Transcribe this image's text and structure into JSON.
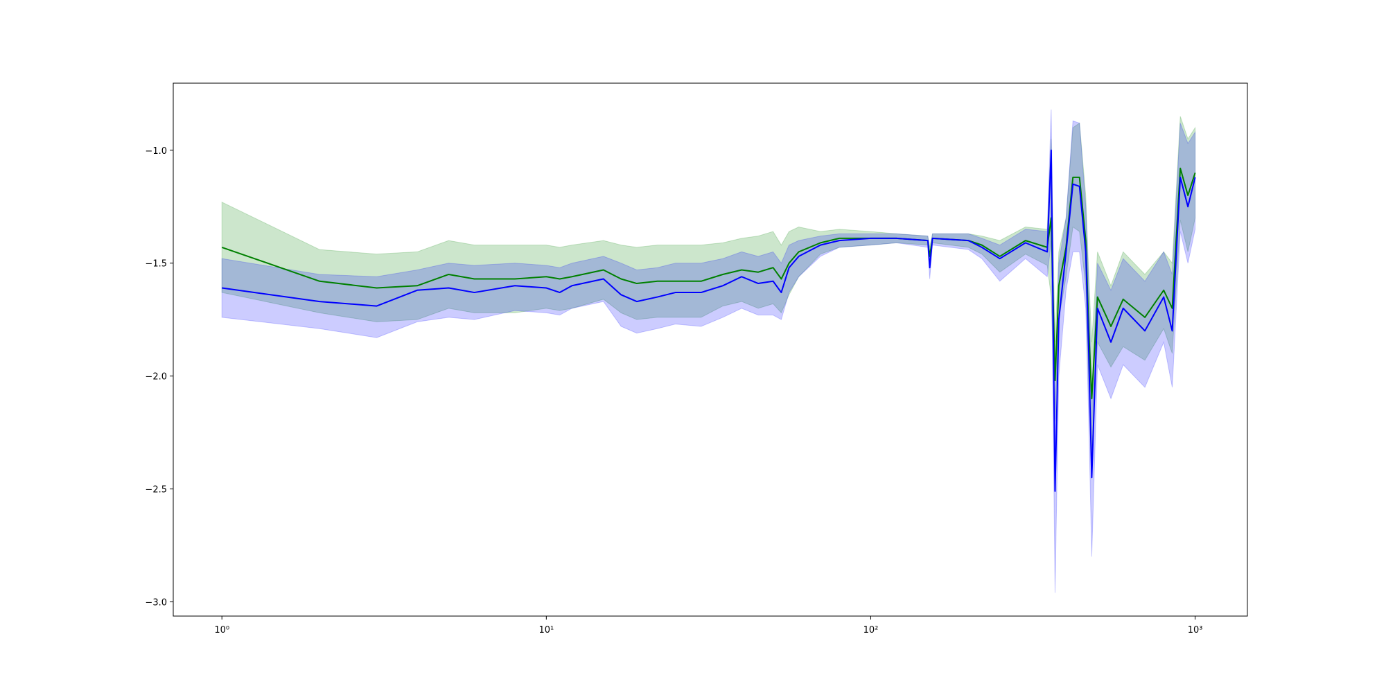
{
  "chart_data": {
    "type": "line",
    "xscale": "log",
    "xlim": [
      0.708,
      1449
    ],
    "ylim": [
      -3.063,
      -0.703
    ],
    "xticks": [
      {
        "value": 1,
        "label": "10⁰"
      },
      {
        "value": 10,
        "label": "10¹"
      },
      {
        "value": 100,
        "label": "10²"
      },
      {
        "value": 1000,
        "label": "10³"
      }
    ],
    "yticks": [
      {
        "value": -1.0,
        "label": "−1.0"
      },
      {
        "value": -1.5,
        "label": "−1.5"
      },
      {
        "value": -2.0,
        "label": "−2.0"
      },
      {
        "value": -2.5,
        "label": "−2.5"
      },
      {
        "value": -3.0,
        "label": "−3.0"
      }
    ],
    "grid": false,
    "x": [
      1,
      2,
      3,
      4,
      5,
      6,
      8,
      10,
      11,
      12,
      15,
      17,
      19,
      22,
      25,
      30,
      35,
      40,
      45,
      50,
      53,
      56,
      60,
      70,
      80,
      100,
      120,
      150,
      152,
      155,
      200,
      220,
      250,
      300,
      350,
      360,
      370,
      380,
      400,
      420,
      440,
      460,
      470,
      480,
      500,
      550,
      600,
      700,
      800,
      850,
      900,
      950,
      1000
    ],
    "series": [
      {
        "color": "#008000",
        "values": [
          -1.43,
          -1.58,
          -1.61,
          -1.6,
          -1.55,
          -1.57,
          -1.57,
          -1.56,
          -1.57,
          -1.56,
          -1.53,
          -1.57,
          -1.59,
          -1.58,
          -1.58,
          -1.58,
          -1.55,
          -1.53,
          -1.54,
          -1.52,
          -1.57,
          -1.5,
          -1.45,
          -1.41,
          -1.39,
          -1.39,
          -1.39,
          -1.4,
          -1.47,
          -1.39,
          -1.4,
          -1.42,
          -1.47,
          -1.4,
          -1.43,
          -1.3,
          -2.02,
          -1.6,
          -1.43,
          -1.12,
          -1.12,
          -1.4,
          -1.8,
          -2.1,
          -1.65,
          -1.78,
          -1.66,
          -1.74,
          -1.62,
          -1.7,
          -1.08,
          -1.2,
          -1.1
        ],
        "upper": [
          -1.23,
          -1.44,
          -1.46,
          -1.45,
          -1.4,
          -1.42,
          -1.42,
          -1.42,
          -1.43,
          -1.42,
          -1.4,
          -1.42,
          -1.43,
          -1.42,
          -1.42,
          -1.42,
          -1.41,
          -1.39,
          -1.38,
          -1.36,
          -1.42,
          -1.36,
          -1.34,
          -1.36,
          -1.35,
          -1.36,
          -1.37,
          -1.38,
          -1.43,
          -1.37,
          -1.37,
          -1.38,
          -1.4,
          -1.34,
          -1.35,
          -0.95,
          -1.85,
          -1.45,
          -1.3,
          -0.9,
          -0.88,
          -1.2,
          -1.55,
          -1.85,
          -1.45,
          -1.6,
          -1.45,
          -1.55,
          -1.45,
          -1.5,
          -0.85,
          -0.95,
          -0.9
        ],
        "lower": [
          -1.63,
          -1.72,
          -1.76,
          -1.75,
          -1.7,
          -1.72,
          -1.72,
          -1.7,
          -1.71,
          -1.7,
          -1.66,
          -1.72,
          -1.75,
          -1.74,
          -1.74,
          -1.74,
          -1.69,
          -1.67,
          -1.7,
          -1.68,
          -1.72,
          -1.64,
          -1.56,
          -1.46,
          -1.43,
          -1.42,
          -1.41,
          -1.42,
          -1.51,
          -1.41,
          -1.43,
          -1.46,
          -1.54,
          -1.46,
          -1.51,
          -1.65,
          -2.19,
          -1.75,
          -1.56,
          -1.34,
          -1.36,
          -1.6,
          -2.05,
          -2.35,
          -1.85,
          -1.96,
          -1.87,
          -1.93,
          -1.79,
          -1.9,
          -1.31,
          -1.45,
          -1.3
        ]
      },
      {
        "color": "#0000ff",
        "values": [
          -1.61,
          -1.67,
          -1.69,
          -1.62,
          -1.61,
          -1.63,
          -1.6,
          -1.61,
          -1.63,
          -1.6,
          -1.57,
          -1.64,
          -1.67,
          -1.65,
          -1.63,
          -1.63,
          -1.6,
          -1.56,
          -1.59,
          -1.58,
          -1.63,
          -1.52,
          -1.47,
          -1.42,
          -1.4,
          -1.39,
          -1.39,
          -1.4,
          -1.52,
          -1.39,
          -1.4,
          -1.43,
          -1.48,
          -1.41,
          -1.45,
          -1.0,
          -2.51,
          -1.75,
          -1.45,
          -1.15,
          -1.16,
          -1.45,
          -1.9,
          -2.45,
          -1.7,
          -1.85,
          -1.7,
          -1.8,
          -1.65,
          -1.8,
          -1.12,
          -1.25,
          -1.12
        ],
        "upper": [
          -1.48,
          -1.55,
          -1.56,
          -1.53,
          -1.5,
          -1.51,
          -1.5,
          -1.51,
          -1.52,
          -1.5,
          -1.47,
          -1.5,
          -1.53,
          -1.52,
          -1.5,
          -1.5,
          -1.48,
          -1.45,
          -1.47,
          -1.45,
          -1.5,
          -1.42,
          -1.4,
          -1.38,
          -1.37,
          -1.37,
          -1.37,
          -1.38,
          -1.47,
          -1.37,
          -1.37,
          -1.39,
          -1.42,
          -1.35,
          -1.36,
          -0.82,
          -2.2,
          -1.5,
          -1.3,
          -0.87,
          -0.88,
          -1.25,
          -1.6,
          -2.1,
          -1.5,
          -1.62,
          -1.48,
          -1.58,
          -1.45,
          -1.55,
          -0.88,
          -0.97,
          -0.92
        ],
        "lower": [
          -1.74,
          -1.79,
          -1.83,
          -1.76,
          -1.74,
          -1.75,
          -1.71,
          -1.72,
          -1.73,
          -1.7,
          -1.67,
          -1.78,
          -1.81,
          -1.79,
          -1.77,
          -1.78,
          -1.74,
          -1.7,
          -1.73,
          -1.73,
          -1.75,
          -1.63,
          -1.56,
          -1.47,
          -1.43,
          -1.42,
          -1.41,
          -1.43,
          -1.57,
          -1.42,
          -1.44,
          -1.48,
          -1.58,
          -1.48,
          -1.56,
          -1.4,
          -2.96,
          -2.0,
          -1.62,
          -1.45,
          -1.45,
          -1.7,
          -2.2,
          -2.8,
          -1.95,
          -2.1,
          -1.95,
          -2.05,
          -1.85,
          -2.05,
          -1.36,
          -1.5,
          -1.35
        ]
      }
    ]
  }
}
